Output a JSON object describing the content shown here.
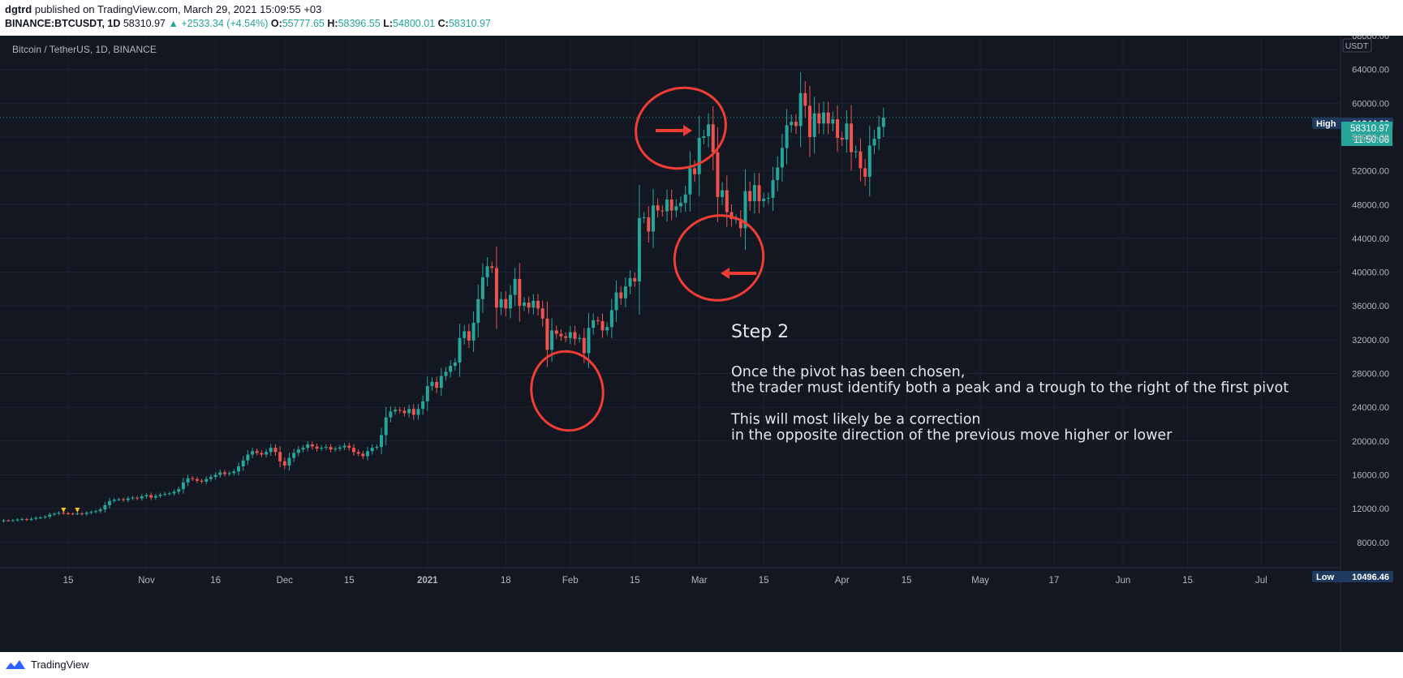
{
  "header": {
    "author": "dgtrd",
    "published": "published on TradingView.com, March 29, 2021 15:09:55 +03",
    "symbol": "BINANCE:BTCUSDT, 1D",
    "last": "58310.97",
    "change": "▲ +2533.34 (+4.54%)",
    "o_label": "O:",
    "o": "55777.65",
    "h_label": "H:",
    "h": "58396.55",
    "l_label": "L:",
    "l": "54800.01",
    "c_label": "C:",
    "c": "58310.97"
  },
  "chart": {
    "legend": "Bitcoin / TetherUS, 1D, BINANCE",
    "currency": "USDT",
    "high_label": "High",
    "high_value": "61844.00",
    "low_label": "Low",
    "low_value": "10496.46",
    "price_tag": "58310.97",
    "countdown": "11:50:06",
    "annotation_title": "Step 2",
    "annotation_lines": [
      "Once the pivot has been chosen,",
      "the trader must identify both a peak and a trough to the right of the first pivot",
      "",
      "This will most likely be a correction",
      "in the opposite direction of the previous move higher or lower"
    ]
  },
  "colors": {
    "background": "#131722",
    "up": "#26a69a",
    "down": "#ef5350",
    "annotation": "#f23d35",
    "text": "#d1d4dc",
    "marker": "#f5c518"
  },
  "footer": {
    "brand": "TradingView"
  },
  "chart_data": {
    "type": "candlestick",
    "y_axis_ticks": [
      8000,
      12000,
      16000,
      20000,
      24000,
      28000,
      32000,
      36000,
      40000,
      44000,
      48000,
      52000,
      56000,
      60000,
      64000,
      68000
    ],
    "ylim": [
      5000,
      68000
    ],
    "x_axis_labels": [
      "15",
      "Nov",
      "16",
      "Dec",
      "15",
      "2021",
      "18",
      "Feb",
      "15",
      "Mar",
      "15",
      "Apr",
      "15",
      "May",
      "17",
      "Jun",
      "15",
      "Jul"
    ],
    "x_start": "2020-10-01",
    "x_label_dates": [
      "2020-10-15",
      "2020-11-01",
      "2020-11-16",
      "2020-12-01",
      "2020-12-15",
      "2021-01-01",
      "2021-01-18",
      "2021-02-01",
      "2021-02-15",
      "2021-03-01",
      "2021-03-15",
      "2021-04-01",
      "2021-04-15",
      "2021-05-01",
      "2021-05-17",
      "2021-06-01",
      "2021-06-15",
      "2021-07-01"
    ],
    "series_name": "BTCUSDT",
    "close": [
      10600,
      10580,
      10620,
      10700,
      10750,
      10680,
      10790,
      10900,
      10950,
      11050,
      11300,
      11400,
      11500,
      11450,
      11400,
      11380,
      11420,
      11350,
      11500,
      11600,
      11700,
      11900,
      12400,
      12900,
      13050,
      13100,
      13000,
      13200,
      13300,
      13200,
      13450,
      13600,
      13300,
      13500,
      13650,
      13750,
      13800,
      14000,
      14300,
      15100,
      15600,
      15500,
      15300,
      15200,
      15500,
      15750,
      16000,
      16300,
      16100,
      16200,
      16400,
      17000,
      17700,
      18400,
      18800,
      18600,
      18400,
      18700,
      19200,
      18700,
      17600,
      17100,
      18000,
      18600,
      19000,
      19200,
      19600,
      19350,
      19100,
      19200,
      19300,
      19000,
      19100,
      19250,
      19450,
      19200,
      18700,
      18500,
      18200,
      18800,
      19200,
      19300,
      20700,
      22800,
      23500,
      23700,
      23600,
      23300,
      23800,
      23100,
      23800,
      24700,
      26500,
      27000,
      26300,
      27700,
      28200,
      28900,
      29300,
      32200,
      33000,
      31900,
      34000,
      36800,
      39400,
      40700,
      40500,
      35800,
      36800,
      35700,
      37300,
      39200,
      36000,
      36400,
      35800,
      36600,
      35700,
      34500,
      30800,
      33100,
      32700,
      32400,
      32200,
      32900,
      32100,
      32200,
      30400,
      33400,
      34300,
      34200,
      33100,
      33500,
      35500,
      37600,
      36900,
      38300,
      39300,
      38900,
      46400,
      46500,
      44800,
      47900,
      47300,
      47200,
      48600,
      47300,
      47800,
      48200,
      49200,
      52300,
      51600,
      55900,
      56100,
      57500,
      54200,
      48900,
      49700,
      47100,
      46300,
      46300,
      45200,
      49600,
      48400,
      50300,
      48400,
      48700,
      48800,
      50900,
      52400,
      54700,
      57400,
      57800,
      57300,
      61200,
      59700,
      56000,
      58800,
      57600,
      58900,
      57600,
      58100,
      55900,
      55700,
      57600,
      54200,
      54300,
      52300,
      51300,
      55000,
      55800,
      57200,
      58300
    ]
  }
}
